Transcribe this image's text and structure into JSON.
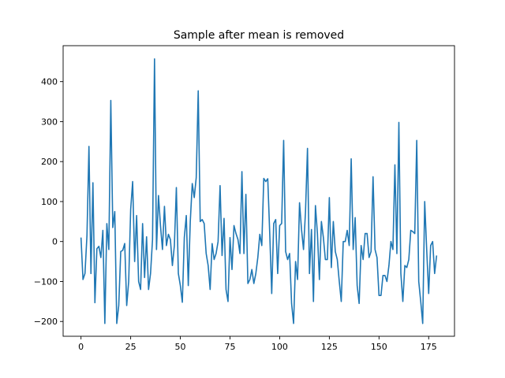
{
  "chart_data": {
    "type": "line",
    "title": "Sample after mean is removed",
    "xlabel": "",
    "ylabel": "",
    "xlim": [
      -9,
      188
    ],
    "ylim": [
      -237,
      490
    ],
    "xticks": [
      0,
      25,
      50,
      75,
      100,
      125,
      150,
      175
    ],
    "yticks": [
      -200,
      -100,
      0,
      100,
      200,
      300,
      400
    ],
    "grid": false,
    "line_color": "#1f77b4",
    "series": [
      {
        "x_start": 0,
        "x_step": 1,
        "values": [
          10,
          -95,
          -80,
          15,
          238,
          -80,
          147,
          -153,
          -18,
          -12,
          -40,
          28,
          -205,
          45,
          -20,
          353,
          35,
          75,
          -205,
          -160,
          -25,
          -22,
          -5,
          -160,
          -100,
          80,
          150,
          -50,
          65,
          -100,
          -120,
          45,
          -90,
          12,
          -120,
          -80,
          5,
          457,
          -20,
          115,
          40,
          -20,
          88,
          -10,
          18,
          5,
          -60,
          -10,
          135,
          -80,
          -110,
          -152,
          10,
          65,
          -110,
          50,
          145,
          110,
          160,
          377,
          50,
          55,
          45,
          -30,
          -60,
          -120,
          -5,
          -45,
          -30,
          0,
          140,
          -35,
          58,
          -120,
          -150,
          10,
          -70,
          40,
          20,
          5,
          -30,
          175,
          -30,
          118,
          -105,
          -95,
          -70,
          -105,
          -80,
          -40,
          18,
          -10,
          158,
          150,
          157,
          20,
          -130,
          45,
          55,
          -80,
          40,
          45,
          253,
          -25,
          -45,
          -30,
          -155,
          -205,
          -50,
          -95,
          97,
          30,
          -20,
          75,
          233,
          -80,
          30,
          -150,
          90,
          20,
          -95,
          50,
          10,
          -45,
          -45,
          110,
          -65,
          50,
          -25,
          -45,
          -100,
          -150,
          0,
          0,
          28,
          -10,
          207,
          -20,
          60,
          -110,
          -155,
          -10,
          -45,
          20,
          20,
          -40,
          -25,
          162,
          -20,
          -40,
          -135,
          -135,
          -85,
          -85,
          -100,
          -60,
          0,
          -20,
          192,
          -30,
          298,
          -80,
          -150,
          -60,
          -65,
          -45,
          28,
          25,
          20,
          253,
          -100,
          -150,
          -205,
          100,
          -20,
          -130,
          -10,
          0,
          -80,
          -35
        ]
      }
    ]
  }
}
